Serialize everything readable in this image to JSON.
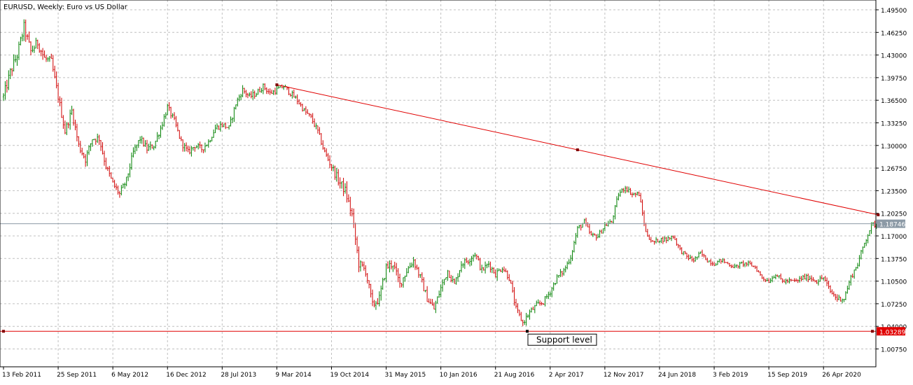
{
  "window": {
    "title": "EURUSD, Weekly:  Euro vs US Dollar"
  },
  "colors": {
    "background": "#ffffff",
    "grid": "#c0c0c0",
    "frame": "#000000",
    "bull": "#008000",
    "bear": "#d00000",
    "trendline": "#e00000",
    "support": "#e00000",
    "bid_line": "#8c9aa6",
    "bid_label_bg": "#8c9aa6",
    "support_label_bg": "#e00000"
  },
  "chart_data": {
    "type": "candlestick",
    "symbol": "EURUSD",
    "timeframe": "Weekly",
    "title": "EURUSD, Weekly:  Euro vs US Dollar",
    "y_axis": {
      "range": [
        1.045,
        1.51
      ],
      "ticks": [
        "1.49500",
        "1.46250",
        "1.43000",
        "1.39750",
        "1.36500",
        "1.33250",
        "1.30000",
        "1.26750",
        "1.23500",
        "1.20250",
        "1.17000",
        "1.13750",
        "1.10500",
        "1.07250",
        "1.04000",
        "1.00750"
      ]
    },
    "x_axis": {
      "ticks": [
        "13 Feb 2011",
        "25 Sep 2011",
        "6 May 2012",
        "16 Dec 2012",
        "28 Jul 2013",
        "9 Mar 2014",
        "19 Oct 2014",
        "31 May 2015",
        "10 Jan 2016",
        "21 Aug 2016",
        "2 Apr 2017",
        "12 Nov 2017",
        "24 Jun 2018",
        "3 Feb 2019",
        "15 Sep 2019",
        "26 Apr 2020"
      ]
    },
    "bars_per_label": 32,
    "last_price": "1.18746",
    "last_price_value": 1.18746,
    "support": {
      "value": 1.03289,
      "label": "1.03289",
      "text": "Support level"
    },
    "trendline": {
      "start": {
        "bar": 160,
        "price": 1.3872
      },
      "end": {
        "bar": 512,
        "price": 1.2003
      },
      "mid_bar": 336
    },
    "close_path": [
      [
        0,
        1.37
      ],
      [
        4,
        1.405
      ],
      [
        8,
        1.43
      ],
      [
        12,
        1.47
      ],
      [
        16,
        1.435
      ],
      [
        20,
        1.448
      ],
      [
        24,
        1.425
      ],
      [
        28,
        1.42
      ],
      [
        32,
        1.37
      ],
      [
        36,
        1.32
      ],
      [
        40,
        1.35
      ],
      [
        44,
        1.3
      ],
      [
        48,
        1.28
      ],
      [
        52,
        1.31
      ],
      [
        56,
        1.31
      ],
      [
        60,
        1.27
      ],
      [
        64,
        1.245
      ],
      [
        68,
        1.23
      ],
      [
        72,
        1.25
      ],
      [
        76,
        1.29
      ],
      [
        80,
        1.31
      ],
      [
        84,
        1.295
      ],
      [
        88,
        1.3
      ],
      [
        92,
        1.325
      ],
      [
        96,
        1.355
      ],
      [
        100,
        1.335
      ],
      [
        104,
        1.305
      ],
      [
        108,
        1.29
      ],
      [
        112,
        1.3
      ],
      [
        116,
        1.295
      ],
      [
        120,
        1.305
      ],
      [
        124,
        1.325
      ],
      [
        128,
        1.33
      ],
      [
        132,
        1.325
      ],
      [
        136,
        1.36
      ],
      [
        140,
        1.38
      ],
      [
        144,
        1.37
      ],
      [
        148,
        1.375
      ],
      [
        152,
        1.385
      ],
      [
        156,
        1.375
      ],
      [
        160,
        1.38
      ],
      [
        164,
        1.385
      ],
      [
        168,
        1.375
      ],
      [
        172,
        1.365
      ],
      [
        176,
        1.35
      ],
      [
        180,
        1.34
      ],
      [
        184,
        1.32
      ],
      [
        188,
        1.29
      ],
      [
        192,
        1.27
      ],
      [
        196,
        1.25
      ],
      [
        200,
        1.235
      ],
      [
        204,
        1.2
      ],
      [
        208,
        1.13
      ],
      [
        212,
        1.12
      ],
      [
        216,
        1.07
      ],
      [
        220,
        1.08
      ],
      [
        224,
        1.125
      ],
      [
        228,
        1.13
      ],
      [
        232,
        1.1
      ],
      [
        236,
        1.12
      ],
      [
        240,
        1.135
      ],
      [
        244,
        1.11
      ],
      [
        248,
        1.08
      ],
      [
        252,
        1.065
      ],
      [
        256,
        1.095
      ],
      [
        260,
        1.12
      ],
      [
        264,
        1.1
      ],
      [
        268,
        1.13
      ],
      [
        272,
        1.135
      ],
      [
        276,
        1.145
      ],
      [
        280,
        1.12
      ],
      [
        284,
        1.13
      ],
      [
        288,
        1.115
      ],
      [
        292,
        1.125
      ],
      [
        296,
        1.11
      ],
      [
        300,
        1.065
      ],
      [
        304,
        1.045
      ],
      [
        308,
        1.06
      ],
      [
        312,
        1.07
      ],
      [
        316,
        1.075
      ],
      [
        320,
        1.09
      ],
      [
        324,
        1.11
      ],
      [
        328,
        1.12
      ],
      [
        332,
        1.14
      ],
      [
        336,
        1.18
      ],
      [
        340,
        1.19
      ],
      [
        344,
        1.17
      ],
      [
        348,
        1.17
      ],
      [
        352,
        1.185
      ],
      [
        356,
        1.19
      ],
      [
        360,
        1.23
      ],
      [
        364,
        1.24
      ],
      [
        368,
        1.23
      ],
      [
        372,
        1.23
      ],
      [
        376,
        1.175
      ],
      [
        380,
        1.16
      ],
      [
        384,
        1.165
      ],
      [
        388,
        1.165
      ],
      [
        392,
        1.17
      ],
      [
        396,
        1.15
      ],
      [
        400,
        1.14
      ],
      [
        404,
        1.135
      ],
      [
        408,
        1.145
      ],
      [
        412,
        1.135
      ],
      [
        416,
        1.13
      ],
      [
        420,
        1.135
      ],
      [
        424,
        1.13
      ],
      [
        428,
        1.125
      ],
      [
        432,
        1.13
      ],
      [
        436,
        1.13
      ],
      [
        440,
        1.125
      ],
      [
        444,
        1.11
      ],
      [
        448,
        1.105
      ],
      [
        452,
        1.115
      ],
      [
        456,
        1.105
      ],
      [
        460,
        1.105
      ],
      [
        464,
        1.105
      ],
      [
        468,
        1.11
      ],
      [
        472,
        1.11
      ],
      [
        476,
        1.105
      ],
      [
        480,
        1.11
      ],
      [
        484,
        1.09
      ],
      [
        488,
        1.08
      ],
      [
        492,
        1.08
      ],
      [
        496,
        1.11
      ],
      [
        500,
        1.13
      ],
      [
        504,
        1.16
      ],
      [
        508,
        1.185
      ],
      [
        512,
        1.1875
      ]
    ],
    "vol": [
      [
        0,
        0.012
      ],
      [
        16,
        0.012
      ],
      [
        36,
        0.009
      ],
      [
        120,
        0.007
      ],
      [
        180,
        0.006
      ],
      [
        200,
        0.011
      ],
      [
        216,
        0.01
      ],
      [
        260,
        0.008
      ],
      [
        300,
        0.007
      ],
      [
        340,
        0.006
      ],
      [
        392,
        0.005
      ],
      [
        440,
        0.004
      ],
      [
        488,
        0.006
      ],
      [
        512,
        0.006
      ]
    ],
    "grid": true
  }
}
